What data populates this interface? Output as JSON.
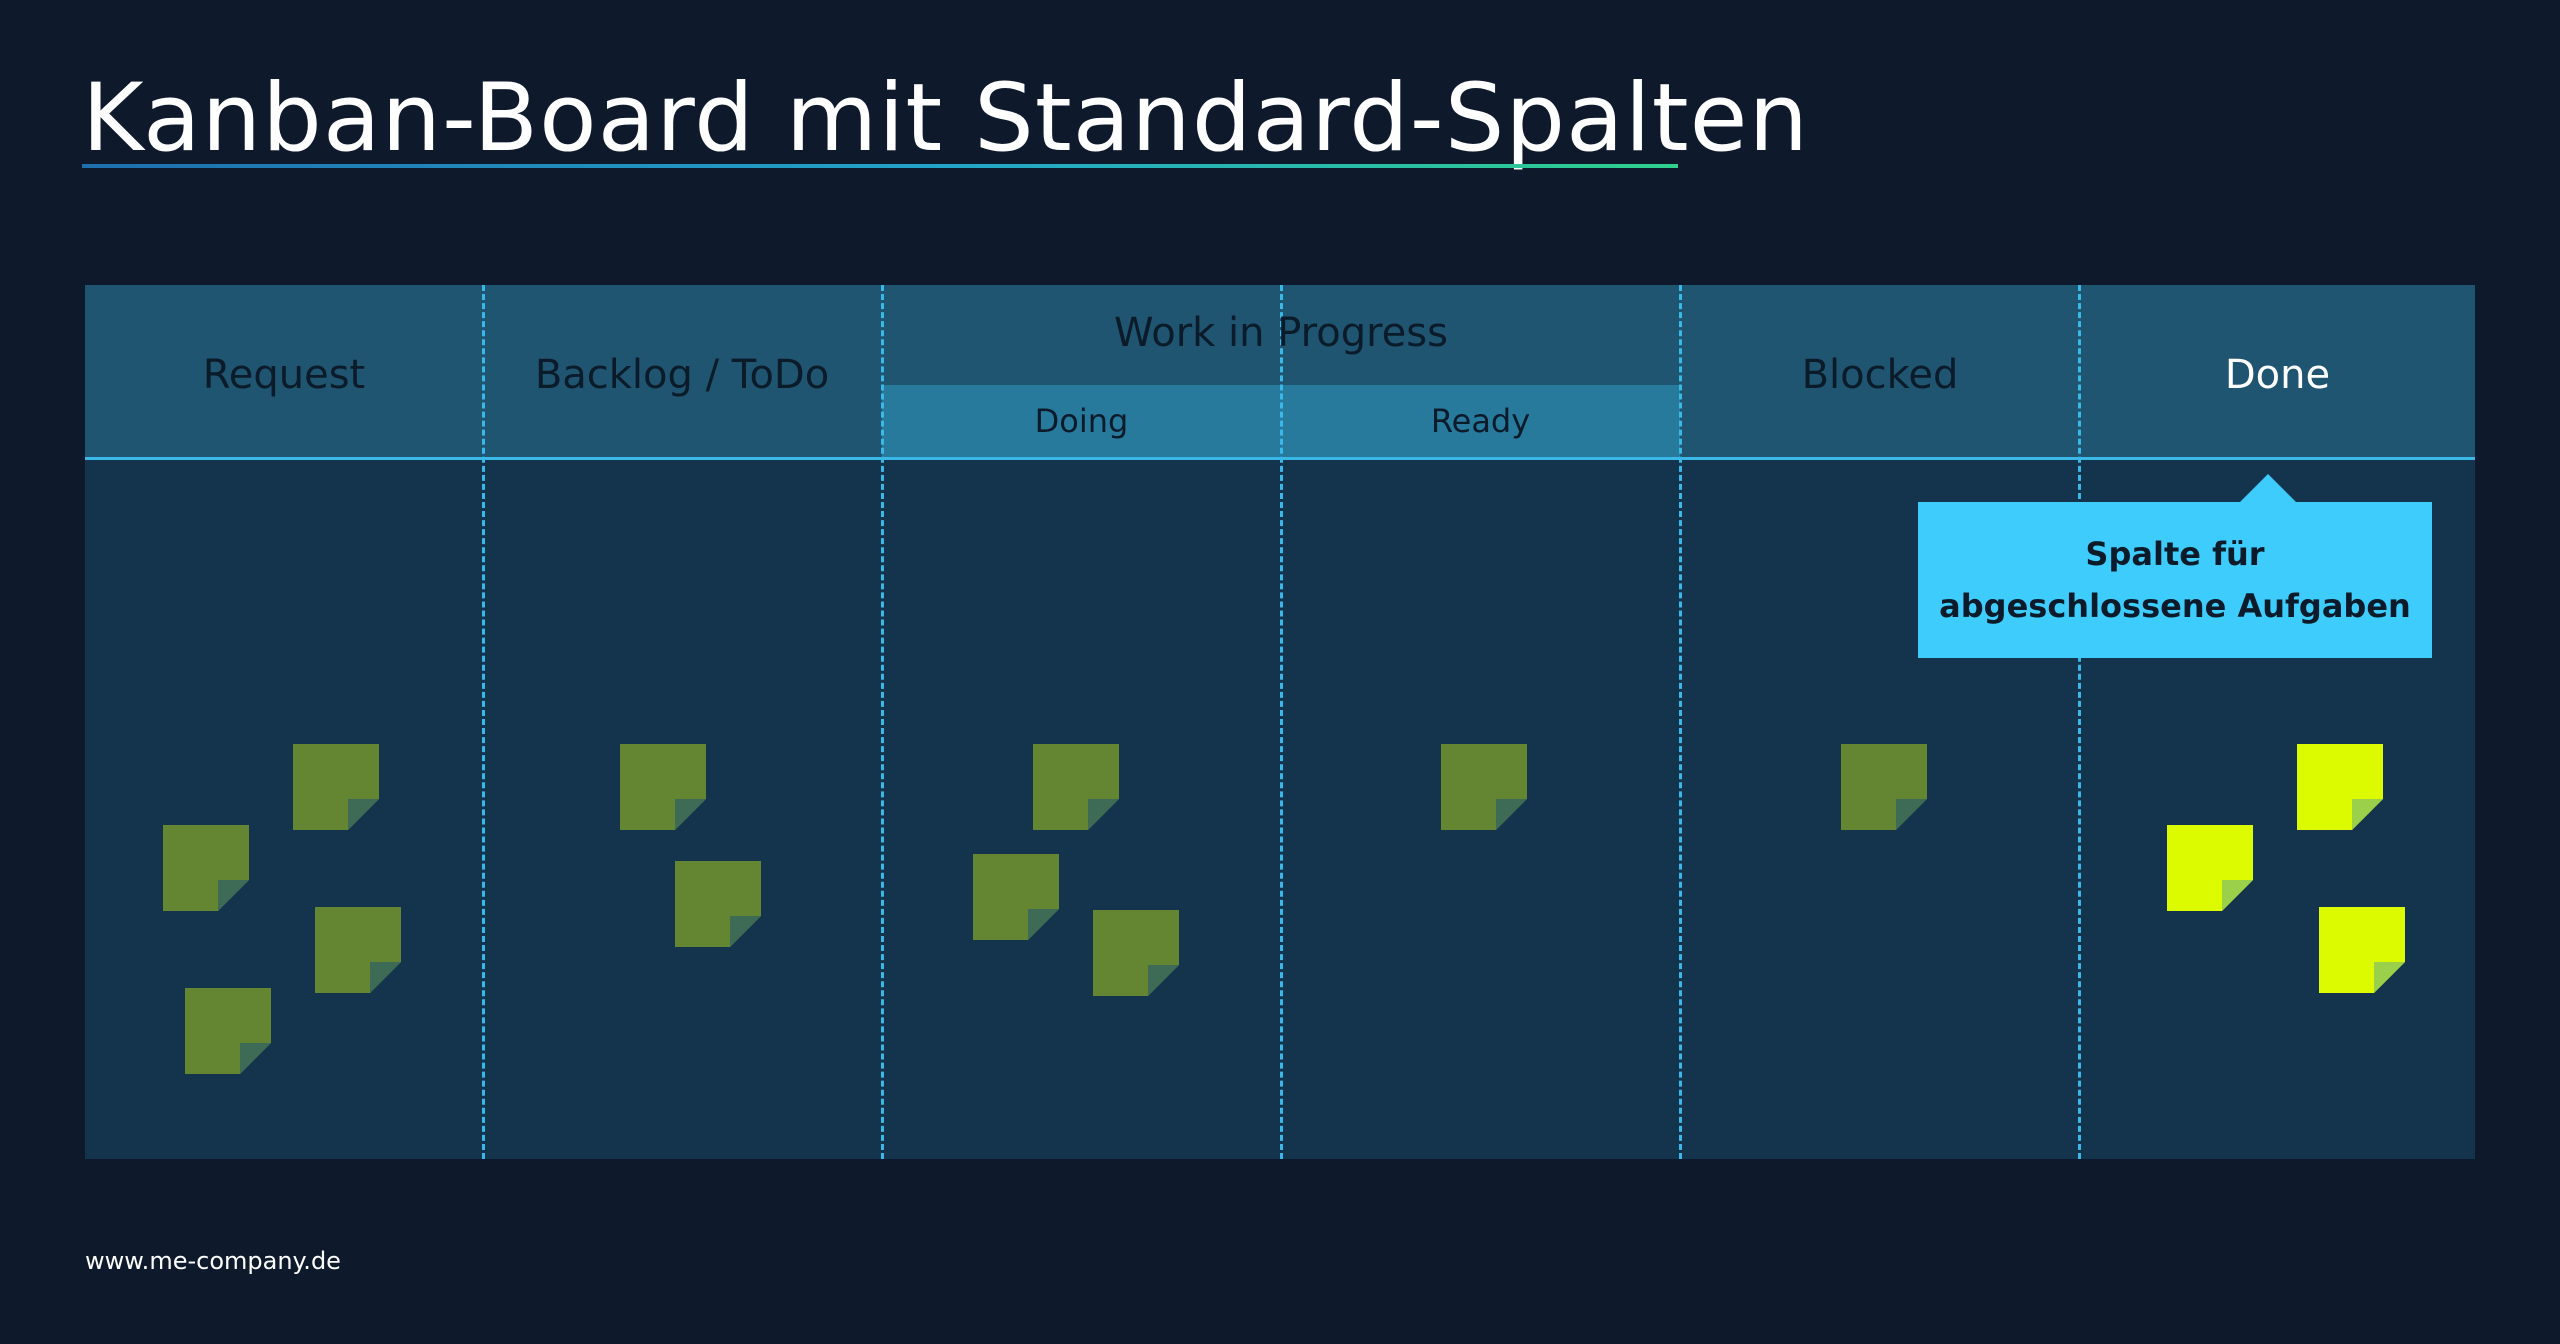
{
  "title": "Kanban-Board mit Standard-Spalten",
  "board": {
    "columns": [
      {
        "label": "Request"
      },
      {
        "label": "Backlog / ToDo"
      },
      {
        "label": "Work in Progress",
        "subcolumns": [
          {
            "label": "Doing"
          },
          {
            "label": "Ready"
          }
        ]
      },
      {
        "label": "Blocked"
      },
      {
        "label": "Done"
      }
    ],
    "cards_per_column": {
      "Request": 4,
      "Backlog / ToDo": 2,
      "Doing": 3,
      "Ready": 1,
      "Blocked": 1,
      "Done": 3
    }
  },
  "callout": {
    "text": "Spalte für abgeschlossene Aufgaben",
    "color": "#3dccfb"
  },
  "footer": {
    "url": "www.me-company.de"
  },
  "colors": {
    "background": "#0e1a2b",
    "board": "#14344d",
    "header": "#1f5570",
    "subheader": "#287a9d",
    "divider": "#3ab8e8",
    "card_pending": "#648531",
    "card_done": "#dcfa00"
  }
}
